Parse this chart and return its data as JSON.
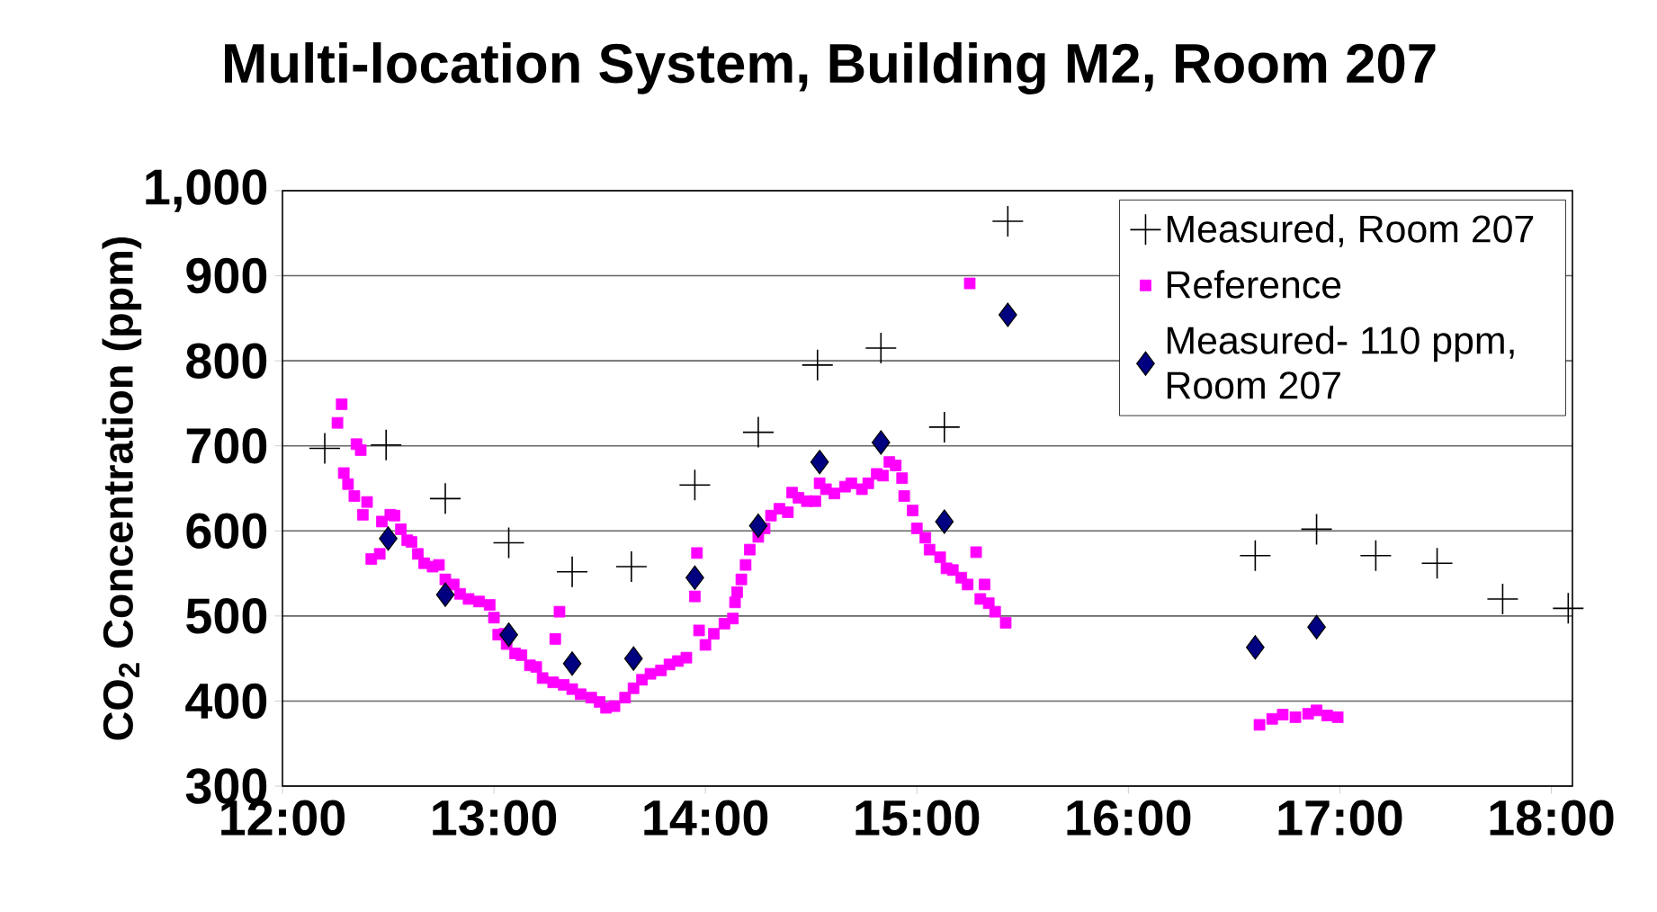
{
  "chart_data": {
    "type": "scatter",
    "title": "Multi-location System, Building M2, Room 207",
    "ylabel": "CO$_{2}$ Concentration (ppm)",
    "xlim": [
      12,
      18.1
    ],
    "ylim": [
      300,
      1000
    ],
    "xticks": [
      {
        "value": 12,
        "label": "12:00"
      },
      {
        "value": 13,
        "label": "13:00"
      },
      {
        "value": 14,
        "label": "14:00"
      },
      {
        "value": 15,
        "label": "15:00"
      },
      {
        "value": 16,
        "label": "16:00"
      },
      {
        "value": 17,
        "label": "17:00"
      },
      {
        "value": 18,
        "label": "18:00"
      }
    ],
    "yticks": [
      300,
      400,
      500,
      600,
      700,
      800,
      900,
      {
        "value": 1000,
        "label": "1,000"
      }
    ],
    "grid": "y",
    "legend": "top right",
    "series": [
      {
        "name": "Measured, Room 207",
        "color": "#000000",
        "marker": "cross",
        "x": [
          12.2,
          12.49,
          12.77,
          13.07,
          13.37,
          13.65,
          13.95,
          14.25,
          14.53,
          14.83,
          15.13,
          15.43,
          16.6,
          16.89,
          17.17,
          17.46,
          17.77,
          18.08
        ],
        "values": [
          697,
          701,
          638,
          586,
          552,
          558,
          654,
          716,
          795,
          815,
          722,
          964,
          571,
          602,
          571,
          562,
          520,
          509
        ]
      },
      {
        "name": "Reference",
        "color": "#ff00ff",
        "marker": "square",
        "x": [
          12.26,
          12.28,
          12.29,
          12.31,
          12.34,
          12.35,
          12.37,
          12.38,
          12.4,
          12.42,
          12.46,
          12.47,
          12.51,
          12.53,
          12.56,
          12.59,
          12.61,
          12.64,
          12.67,
          12.71,
          12.74,
          12.77,
          12.81,
          12.84,
          12.88,
          12.93,
          12.98,
          13.0,
          13.02,
          13.05,
          13.06,
          13.1,
          13.13,
          13.17,
          13.2,
          13.23,
          13.28,
          13.29,
          13.31,
          13.33,
          13.37,
          13.41,
          13.46,
          13.5,
          13.53,
          13.57,
          13.62,
          13.66,
          13.7,
          13.74,
          13.79,
          13.83,
          13.87,
          13.91,
          13.95,
          13.96,
          13.97,
          14.0,
          14.04,
          14.09,
          14.13,
          14.14,
          14.15,
          14.17,
          14.19,
          14.21,
          14.25,
          14.28,
          14.31,
          14.35,
          14.39,
          14.41,
          14.44,
          14.48,
          14.52,
          14.54,
          14.57,
          14.61,
          14.66,
          14.69,
          14.74,
          14.77,
          14.81,
          14.84,
          14.87,
          14.9,
          14.93,
          14.94,
          14.98,
          15.0,
          15.04,
          15.06,
          15.11,
          15.14,
          15.17,
          15.21,
          15.24,
          15.25,
          15.28,
          15.3,
          15.32,
          15.34,
          15.37,
          15.42,
          16.62,
          16.68,
          16.73,
          16.79,
          16.85,
          16.89,
          16.94,
          16.99
        ],
        "values": [
          727,
          749,
          668,
          655,
          641,
          702,
          695,
          619,
          634,
          567,
          573,
          611,
          619,
          618,
          602,
          589,
          587,
          573,
          562,
          558,
          560,
          543,
          537,
          526,
          520,
          517,
          513,
          498,
          478,
          479,
          467,
          456,
          454,
          442,
          440,
          427,
          422,
          473,
          505,
          419,
          414,
          408,
          404,
          399,
          392,
          394,
          404,
          415,
          425,
          432,
          436,
          443,
          447,
          451,
          523,
          574,
          483,
          466,
          479,
          491,
          497,
          516,
          528,
          543,
          560,
          578,
          593,
          603,
          618,
          626,
          622,
          645,
          639,
          635,
          635,
          656,
          649,
          644,
          652,
          656,
          649,
          656,
          667,
          665,
          681,
          677,
          662,
          641,
          624,
          603,
          592,
          578,
          569,
          556,
          554,
          545,
          537,
          891,
          575,
          520,
          537,
          515,
          505,
          492,
          372,
          379,
          384,
          381,
          385,
          389,
          383,
          381
        ]
      },
      {
        "name": "Measured- 110 ppm, Room 207",
        "color": "#000080",
        "marker": "diamond",
        "x": [
          12.5,
          12.77,
          13.07,
          13.37,
          13.66,
          13.95,
          14.25,
          14.54,
          14.83,
          15.13,
          15.43,
          16.6,
          16.89
        ],
        "values": [
          591,
          525,
          478,
          444,
          450,
          545,
          606,
          681,
          704,
          611,
          854,
          463,
          487
        ]
      }
    ]
  }
}
